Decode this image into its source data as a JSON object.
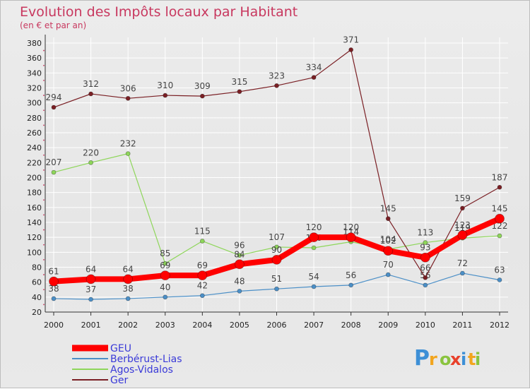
{
  "chart_data": {
    "type": "line",
    "title": "Evolution des Impôts locaux par Habitant",
    "subtitle": "(en € et par an)",
    "xlabel": "",
    "ylabel": "",
    "ylim": [
      20,
      380
    ],
    "yticks": [
      20,
      40,
      60,
      80,
      100,
      120,
      140,
      160,
      180,
      200,
      220,
      240,
      260,
      280,
      300,
      320,
      340,
      360,
      380
    ],
    "x": [
      "2000",
      "2001",
      "2002",
      "2003",
      "2004",
      "2005",
      "2006",
      "2007",
      "2008",
      "2009",
      "2010",
      "2011",
      "2012"
    ],
    "legend_position": "bottom-left",
    "series": [
      {
        "name": "GEU",
        "color": "#ff0000",
        "values": [
          61,
          64,
          64,
          69,
          69,
          84,
          90,
          120,
          120,
          102,
          93,
          123,
          145
        ]
      },
      {
        "name": "Berbérust-Lias",
        "color": "#4b8fc7",
        "values": [
          38,
          37,
          38,
          40,
          42,
          48,
          51,
          54,
          56,
          70,
          56,
          72,
          63
        ]
      },
      {
        "name": "Agos-Vidalos",
        "color": "#8ed65a",
        "values": [
          207,
          220,
          232,
          85,
          115,
          96,
          107,
          106,
          114,
          104,
          113,
          119,
          122
        ]
      },
      {
        "name": "Ger",
        "color": "#7a1f24",
        "values": [
          294,
          312,
          306,
          310,
          309,
          315,
          323,
          334,
          371,
          145,
          66,
          159,
          187
        ]
      }
    ]
  },
  "brand": {
    "letters": [
      "P",
      "r",
      "o",
      "x",
      "i",
      "t",
      "i"
    ],
    "colors": [
      "#3d8fd6",
      "#f2a51e",
      "#8ac43f",
      "#e8402a",
      "#3d8fd6",
      "#f2a51e",
      "#8ac43f"
    ]
  }
}
